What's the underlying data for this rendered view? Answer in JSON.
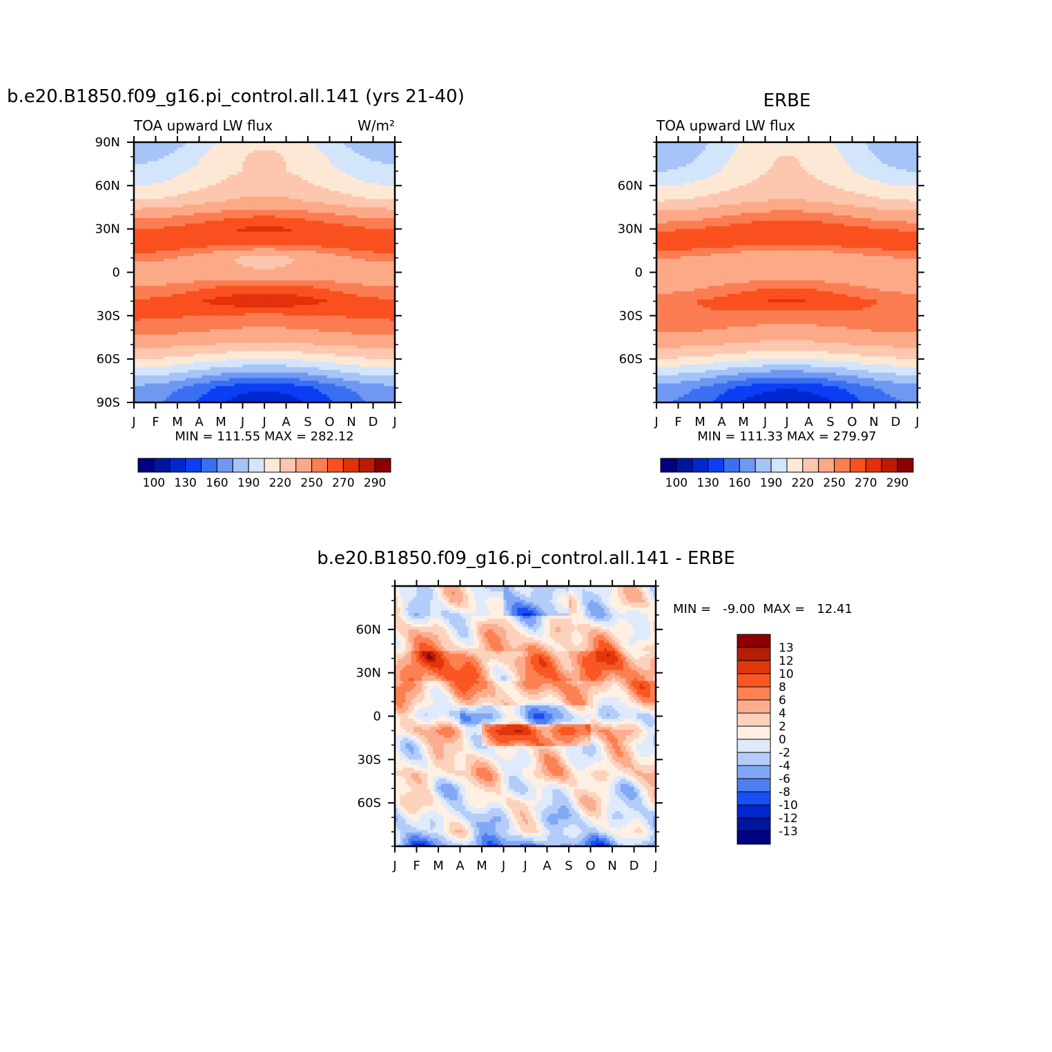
{
  "chart_data": [
    {
      "type": "heatmap",
      "title": "b.e20.B1850.f09_g16.pi_control.all.141 (yrs 21-40)",
      "left_subtitle": "TOA upward LW flux",
      "right_subtitle": "W/m²",
      "x_ticks": [
        "J",
        "F",
        "M",
        "A",
        "M",
        "J",
        "J",
        "A",
        "S",
        "O",
        "N",
        "D",
        "J"
      ],
      "y_ticks": [
        "90N",
        "60N",
        "30N",
        "0",
        "30S",
        "60S",
        "90S"
      ],
      "y_tick_values": [
        90,
        60,
        30,
        0,
        -30,
        -60,
        -90
      ],
      "ylim": [
        -90,
        90
      ],
      "stats": "MIN =  111.55  MAX =  282.12",
      "colorbar_labels": [
        "100",
        "130",
        "160",
        "190",
        "220",
        "250",
        "270",
        "290"
      ],
      "levels": [
        100,
        115,
        130,
        145,
        160,
        175,
        190,
        205,
        220,
        235,
        250,
        260,
        270,
        280,
        290
      ],
      "field": {
        "lat": [
          90,
          80,
          70,
          60,
          50,
          40,
          30,
          20,
          10,
          0,
          -10,
          -20,
          -30,
          -40,
          -50,
          -60,
          -70,
          -80,
          -90
        ],
        "jan": [
          175,
          185,
          195,
          205,
          220,
          245,
          260,
          270,
          255,
          240,
          250,
          262,
          262,
          255,
          240,
          220,
          195,
          170,
          165
        ],
        "jul": [
          218,
          222,
          222,
          228,
          238,
          258,
          272,
          262,
          232,
          236,
          264,
          278,
          258,
          248,
          232,
          205,
          170,
          133,
          120
        ]
      }
    },
    {
      "type": "heatmap",
      "title": "ERBE",
      "left_subtitle": "TOA upward LW flux",
      "x_ticks": [
        "J",
        "F",
        "M",
        "A",
        "M",
        "J",
        "J",
        "A",
        "S",
        "O",
        "N",
        "D",
        "J"
      ],
      "y_ticks": [
        "60N",
        "30N",
        "0",
        "30S",
        "60S"
      ],
      "y_tick_values": [
        60,
        30,
        0,
        -30,
        -60
      ],
      "ylim": [
        -90,
        90
      ],
      "stats": "MIN =  111.33  MAX =  279.97",
      "colorbar_labels": [
        "100",
        "130",
        "160",
        "190",
        "220",
        "250",
        "270",
        "290"
      ],
      "levels": [
        100,
        115,
        130,
        145,
        160,
        175,
        190,
        205,
        220,
        235,
        250,
        260,
        270,
        280,
        290
      ],
      "field": {
        "lat": [
          90,
          80,
          70,
          60,
          50,
          40,
          30,
          20,
          10,
          0,
          -10,
          -20,
          -30,
          -40,
          -50,
          -60,
          -70,
          -80,
          -90
        ],
        "jan": [
          175,
          180,
          190,
          205,
          220,
          240,
          258,
          268,
          250,
          238,
          245,
          258,
          260,
          252,
          238,
          218,
          192,
          168,
          162
        ],
        "jul": [
          216,
          220,
          222,
          226,
          236,
          255,
          268,
          262,
          235,
          238,
          260,
          272,
          256,
          246,
          230,
          205,
          168,
          132,
          118
        ]
      }
    },
    {
      "type": "heatmap",
      "title": "b.e20.B1850.f09_g16.pi_control.all.141 - ERBE",
      "x_ticks": [
        "J",
        "F",
        "M",
        "A",
        "M",
        "J",
        "J",
        "A",
        "S",
        "O",
        "N",
        "D",
        "J"
      ],
      "y_ticks": [
        "60N",
        "30N",
        "0",
        "30S",
        "60S"
      ],
      "y_tick_values": [
        60,
        30,
        0,
        -30,
        -60
      ],
      "ylim": [
        -90,
        90
      ],
      "stats": "MIN =   -9.00  MAX =   12.41",
      "colorbar_labels": [
        "13",
        "12",
        "10",
        "8",
        "6",
        "4",
        "2",
        "0",
        "-2",
        "-4",
        "-6",
        "-8",
        "-10",
        "-12",
        "-13"
      ],
      "levels": [
        -13,
        -12,
        -10,
        -8,
        -6,
        -4,
        -2,
        0,
        2,
        4,
        6,
        8,
        10,
        12,
        13
      ],
      "field": {
        "lat": [
          90,
          80,
          70,
          60,
          50,
          40,
          30,
          20,
          10,
          0,
          -10,
          -20,
          -30,
          -40,
          -50,
          -60,
          -70,
          -80,
          -90
        ],
        "base": [
          0.5,
          1.0,
          -1.5,
          2.0,
          3.5,
          6.5,
          6.0,
          5.0,
          2.5,
          -1.5,
          4.0,
          0.8,
          1.5,
          3.0,
          -0.5,
          0.5,
          -1.5,
          -0.8,
          -6.0
        ]
      }
    }
  ],
  "colors": {
    "palette": [
      "#000080",
      "#00159e",
      "#0127cf",
      "#0b3ef5",
      "#3a6ff2",
      "#6f98f2",
      "#a6c4f7",
      "#d3e5fb",
      "#fde8d6",
      "#fcc7ae",
      "#fba987",
      "#fb7d52",
      "#fa501f",
      "#e3310a",
      "#bd1a04",
      "#8c0000"
    ],
    "diff_palette": [
      "#000080",
      "#00159e",
      "#0127cf",
      "#1a4ff5",
      "#4d7ff2",
      "#80a8f5",
      "#b3ccf9",
      "#dfeafc",
      "#fff0e3",
      "#fdd2bd",
      "#fbae8f",
      "#fb8153",
      "#f95623",
      "#e1370c",
      "#b51e04",
      "#8c0000"
    ]
  }
}
